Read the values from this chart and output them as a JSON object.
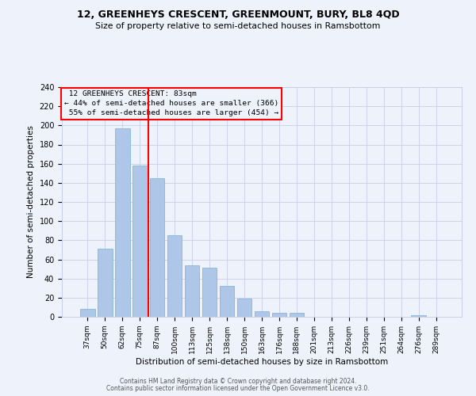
{
  "title": "12, GREENHEYS CRESCENT, GREENMOUNT, BURY, BL8 4QD",
  "subtitle": "Size of property relative to semi-detached houses in Ramsbottom",
  "xlabel": "Distribution of semi-detached houses by size in Ramsbottom",
  "ylabel": "Number of semi-detached properties",
  "categories": [
    "37sqm",
    "50sqm",
    "62sqm",
    "75sqm",
    "87sqm",
    "100sqm",
    "113sqm",
    "125sqm",
    "138sqm",
    "150sqm",
    "163sqm",
    "176sqm",
    "188sqm",
    "201sqm",
    "213sqm",
    "226sqm",
    "239sqm",
    "251sqm",
    "264sqm",
    "276sqm",
    "289sqm"
  ],
  "values": [
    8,
    71,
    197,
    158,
    145,
    85,
    54,
    51,
    32,
    19,
    6,
    4,
    4,
    0,
    0,
    0,
    0,
    0,
    0,
    2,
    0
  ],
  "bar_color": "#aec6e8",
  "bar_edgecolor": "#7aafd4",
  "property_label": "12 GREENHEYS CRESCENT: 83sqm",
  "pct_smaller": 44,
  "pct_smaller_count": 366,
  "pct_larger": 55,
  "pct_larger_count": 454,
  "vline_color": "red",
  "annotation_box_edgecolor": "red",
  "background_color": "#eef2fb",
  "grid_color": "#c8d0e8",
  "footer1": "Contains HM Land Registry data © Crown copyright and database right 2024.",
  "footer2": "Contains public sector information licensed under the Open Government Licence v3.0.",
  "ylim": [
    0,
    240
  ],
  "yticks": [
    0,
    20,
    40,
    60,
    80,
    100,
    120,
    140,
    160,
    180,
    200,
    220,
    240
  ]
}
